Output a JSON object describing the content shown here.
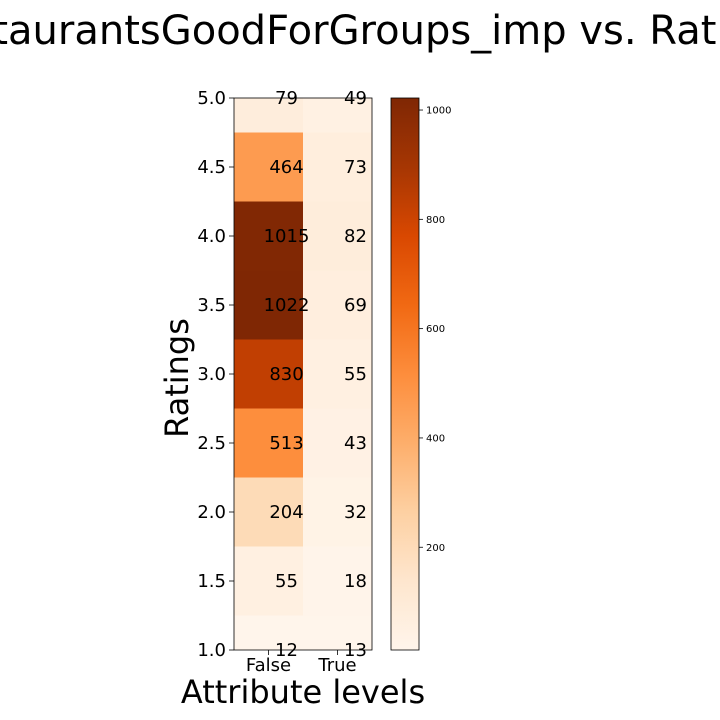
{
  "chart_data": {
    "type": "heatmap",
    "title": "RestaurantsGoodForGroups_imp vs. Ratings",
    "xlabel": "Attribute levels",
    "ylabel": "Ratings",
    "x_categories": [
      "False",
      "True"
    ],
    "y_categories": [
      1.0,
      1.5,
      2.0,
      2.5,
      3.0,
      3.5,
      4.0,
      4.5,
      5.0
    ],
    "y_ticks": [
      "1.0",
      "1.5",
      "2.0",
      "2.5",
      "3.0",
      "3.5",
      "4.0",
      "4.5",
      "5.0"
    ],
    "values": [
      [
        12,
        13
      ],
      [
        55,
        18
      ],
      [
        204,
        32
      ],
      [
        513,
        43
      ],
      [
        830,
        55
      ],
      [
        1022,
        69
      ],
      [
        1015,
        82
      ],
      [
        464,
        73
      ],
      [
        79,
        49
      ]
    ],
    "colormap": "Oranges",
    "color_range": [
      12,
      1022
    ],
    "colorbar_ticks": [
      "200",
      "400",
      "600",
      "800",
      "1000"
    ],
    "colorbar_tick_values": [
      200,
      400,
      600,
      800,
      1000
    ],
    "ylim": [
      1.0,
      5.0
    ]
  }
}
